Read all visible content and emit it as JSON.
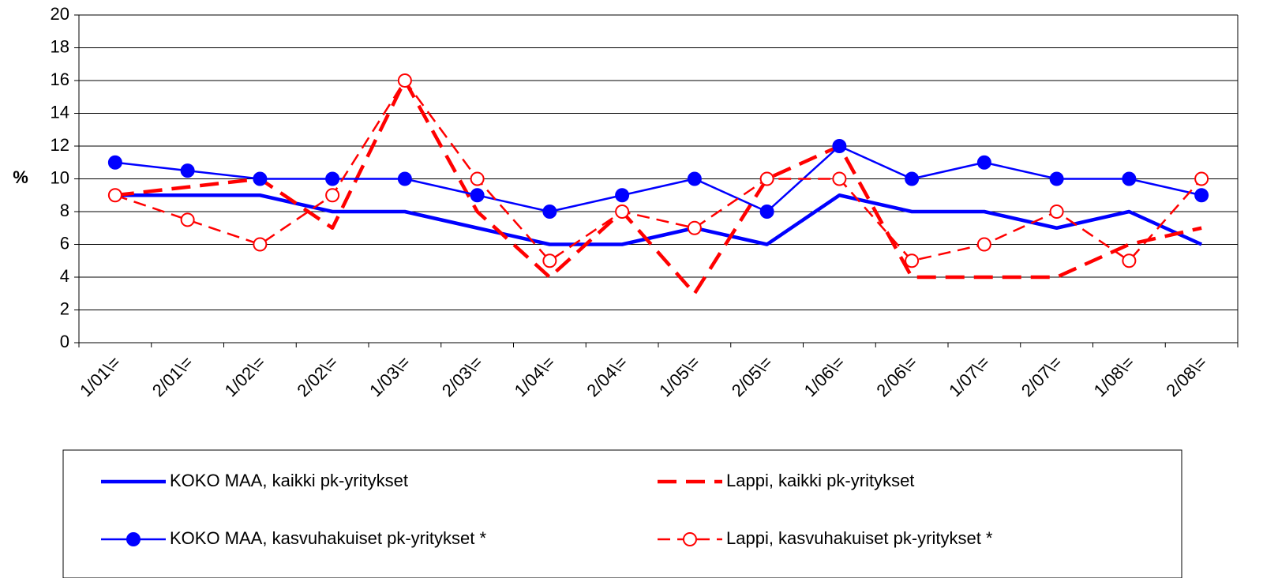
{
  "chart_data": {
    "type": "line",
    "y_label": "%",
    "categories": [
      "1/01\\=",
      "2/01\\=",
      "1/02\\=",
      "2/02\\=",
      "1/03\\=",
      "2/03\\=",
      "1/04\\=",
      "2/04\\=",
      "1/05\\=",
      "2/05\\=",
      "1/06\\=",
      "2/06\\=",
      "1/07\\=",
      "2/07\\=",
      "1/08\\=",
      "2/08\\="
    ],
    "series": [
      {
        "name": "KOKO MAA, kaikki pk-yritykset",
        "color": "#0000ff",
        "style": "thick",
        "dashed": false,
        "marker": "none",
        "values": [
          9,
          9,
          9,
          8,
          8,
          7,
          6,
          6,
          7,
          6,
          9,
          8,
          8,
          7,
          8,
          6
        ]
      },
      {
        "name": "Lappi, kaikki pk-yritykset",
        "color": "#ff0000",
        "style": "thick",
        "dashed": true,
        "marker": "none",
        "values": [
          9,
          9.5,
          10,
          7,
          16,
          8,
          4,
          8,
          3,
          10,
          12,
          4,
          4,
          4,
          6,
          7
        ]
      },
      {
        "name": "KOKO MAA, kasvuhakuiset pk-yritykset *",
        "color": "#0000ff",
        "style": "thin",
        "dashed": false,
        "marker": "filled-circle",
        "values": [
          11,
          10.5,
          10,
          10,
          10,
          9,
          8,
          9,
          10,
          8,
          12,
          10,
          11,
          10,
          10,
          9
        ]
      },
      {
        "name": "Lappi, kasvuhakuiset pk-yritykset *",
        "color": "#ff0000",
        "style": "thin",
        "dashed": true,
        "marker": "open-circle",
        "values": [
          9,
          7.5,
          6,
          9,
          16,
          10,
          5,
          8,
          7,
          10,
          10,
          5,
          6,
          8,
          5,
          10
        ]
      }
    ],
    "ylim": [
      0,
      20
    ],
    "yticks": [
      0,
      2,
      4,
      6,
      8,
      10,
      12,
      14,
      16,
      18,
      20
    ],
    "grid": true
  }
}
